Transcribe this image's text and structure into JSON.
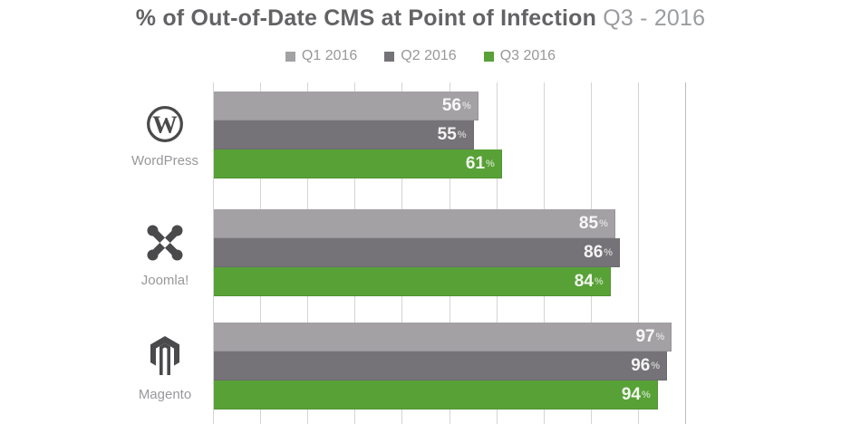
{
  "title": {
    "main": "% of Out-of-Date CMS at Point of Infection",
    "period": "Q3 - 2016"
  },
  "chart_data": {
    "type": "bar",
    "orientation": "horizontal",
    "title": "% of Out-of-Date CMS at Point of Infection Q3 - 2016",
    "categories": [
      "WordPress",
      "Joomla!",
      "Magento"
    ],
    "series": [
      {
        "name": "Q1 2016",
        "color": "#a3a1a4",
        "values": [
          56,
          85,
          97
        ]
      },
      {
        "name": "Q2 2016",
        "color": "#757377",
        "values": [
          55,
          86,
          96
        ]
      },
      {
        "name": "Q3 2016",
        "color": "#58a137",
        "values": [
          61,
          84,
          94
        ]
      }
    ],
    "value_suffix": "%",
    "xlim": [
      0,
      100
    ],
    "gridline_interval": 10,
    "grid": true,
    "legend_position": "top",
    "value_labels": "inside-end"
  },
  "colors": {
    "background": "#ffffff",
    "gridline": "#d4d4d4",
    "gridline_100": "#bcbcbc",
    "title_main": "#636366",
    "title_period": "#9a9c9f",
    "legend_text": "#97989b",
    "category_text": "#97989b",
    "icon": "#4a4a4c",
    "bar_label": "#ffffff"
  }
}
